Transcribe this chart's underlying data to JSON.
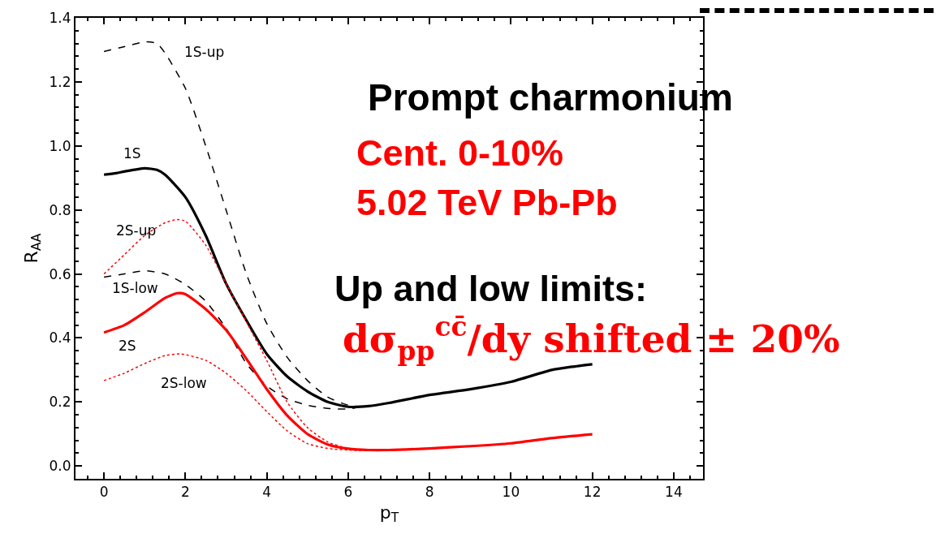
{
  "chart_data": {
    "type": "line",
    "xlabel": "p$_{T}$",
    "ylabel": "R$_{AA}$",
    "xlim": [
      -0.7,
      14.72
    ],
    "ylim": [
      -0.04,
      1.4
    ],
    "xticks": [
      0,
      2,
      4,
      6,
      8,
      10,
      12,
      14
    ],
    "yticks": [
      {
        "value": 0,
        "label": "0.0"
      },
      0.2,
      0.4,
      0.6,
      0.8,
      {
        "value": 1,
        "label": "1.0"
      },
      1.2,
      1.4
    ],
    "grid": false,
    "legend": false,
    "marker": "none",
    "series": [
      {
        "name": "1S-up",
        "color": "#000000",
        "line_style": "dashed",
        "x": [
          0,
          0.5,
          1,
          1.3,
          1.5,
          2,
          2.5,
          3,
          3.5,
          4,
          4.5,
          5,
          5.5,
          6,
          6.3
        ],
        "values": [
          1.295,
          1.31,
          1.325,
          1.32,
          1.29,
          1.18,
          1.0,
          0.8,
          0.6,
          0.445,
          0.34,
          0.267,
          0.215,
          0.19,
          0.185
        ]
      },
      {
        "name": "1S",
        "color": "#000000",
        "line_style": "solid",
        "x": [
          0,
          0.3,
          0.5,
          1,
          1.3,
          1.5,
          2,
          2.5,
          3,
          3.5,
          4,
          4.5,
          5,
          5.5,
          6,
          6.5,
          7,
          8,
          9,
          10,
          11,
          11.5,
          12
        ],
        "values": [
          0.91,
          0.915,
          0.92,
          0.93,
          0.925,
          0.91,
          0.84,
          0.72,
          0.57,
          0.455,
          0.35,
          0.28,
          0.233,
          0.2,
          0.185,
          0.187,
          0.197,
          0.222,
          0.24,
          0.263,
          0.3,
          0.31,
          0.318
        ]
      },
      {
        "name": "1S-low",
        "color": "#000000",
        "line_style": "dashed",
        "x": [
          0,
          0.5,
          1,
          1.5,
          2,
          2.5,
          3,
          3.5,
          4,
          4.5,
          5,
          5.5,
          6,
          6.3
        ],
        "values": [
          0.59,
          0.6,
          0.61,
          0.6,
          0.567,
          0.515,
          0.43,
          0.32,
          0.25,
          0.21,
          0.19,
          0.18,
          0.178,
          0.185
        ]
      },
      {
        "name": "2S-up",
        "color": "#ff0000",
        "line_style": "dotted",
        "x": [
          0,
          0.5,
          1,
          1.5,
          1.8,
          2,
          2.5,
          3,
          3.5,
          4,
          4.5,
          5,
          5.5,
          6,
          6.5
        ],
        "values": [
          0.6,
          0.66,
          0.72,
          0.76,
          0.77,
          0.765,
          0.69,
          0.57,
          0.45,
          0.33,
          0.2,
          0.12,
          0.075,
          0.055,
          0.05
        ]
      },
      {
        "name": "2S",
        "color": "#ff0000",
        "line_style": "solid",
        "x": [
          0,
          0.5,
          1,
          1.5,
          1.8,
          2,
          2.5,
          3,
          3.5,
          4,
          4.5,
          5,
          5.5,
          6,
          6.5,
          7,
          8,
          9,
          10,
          11,
          12
        ],
        "values": [
          0.417,
          0.44,
          0.48,
          0.525,
          0.54,
          0.537,
          0.49,
          0.425,
          0.335,
          0.24,
          0.158,
          0.1,
          0.067,
          0.054,
          0.05,
          0.05,
          0.055,
          0.062,
          0.071,
          0.087,
          0.099
        ]
      },
      {
        "name": "2S-low",
        "color": "#ff0000",
        "line_style": "dotted",
        "x": [
          0,
          0.5,
          1,
          1.5,
          1.9,
          2.5,
          3,
          3.5,
          4,
          4.5,
          5,
          5.5,
          6,
          6.5
        ],
        "values": [
          0.267,
          0.29,
          0.32,
          0.345,
          0.35,
          0.33,
          0.29,
          0.235,
          0.17,
          0.11,
          0.07,
          0.055,
          0.05,
          0.048
        ]
      }
    ],
    "annotations": [
      "Prompt charmonium",
      "Cent. 0-10%",
      "5.02 TeV Pb-Pb",
      "Up and low limits:",
      "dσ$_{pp}$$^{cc̄}$/dy shifted ± 20%"
    ]
  }
}
